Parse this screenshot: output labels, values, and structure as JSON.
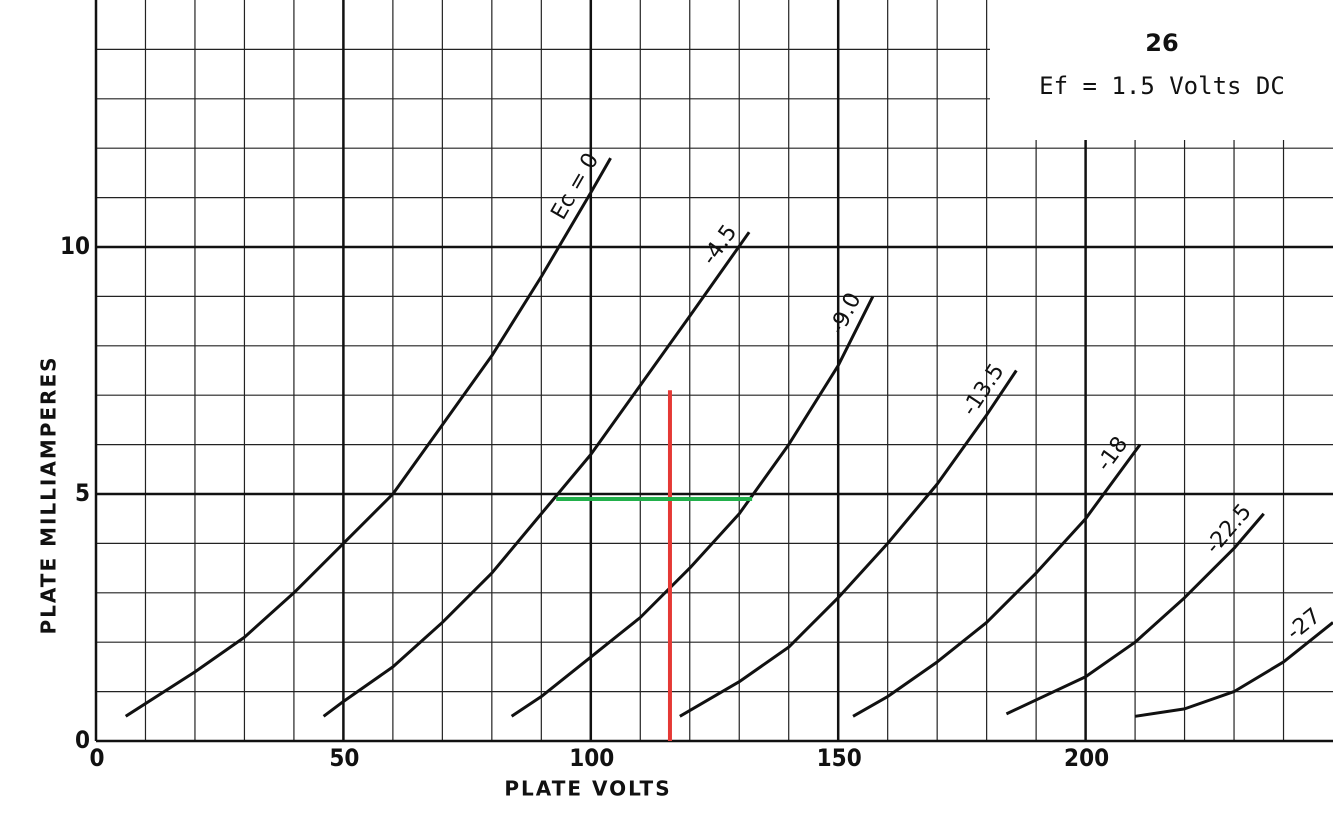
{
  "chart_data": {
    "type": "line",
    "title": "26",
    "subtitle": "Ef = 1.5 Volts DC",
    "x_label": "PLATE VOLTS",
    "y_label": "PLATE MILLIAMPERES",
    "xlim": [
      0,
      250
    ],
    "ylim": [
      0,
      15
    ],
    "xticks": [
      0,
      50,
      100,
      150,
      200
    ],
    "yticks": [
      0,
      5,
      10
    ],
    "x_minor_ticks": [
      10,
      20,
      30,
      40,
      60,
      70,
      80,
      90,
      110,
      120,
      130,
      140,
      160,
      170,
      180,
      190,
      210,
      220,
      230,
      240
    ],
    "y_minor_ticks": [
      1,
      2,
      3,
      4,
      6,
      7,
      8,
      9,
      11,
      12,
      13,
      14
    ],
    "grid": true,
    "series": [
      {
        "name": "Ec = 0",
        "color": "#111111",
        "x": [
          6,
          20,
          30,
          40,
          50,
          60,
          70,
          80,
          90,
          100,
          104
        ],
        "values": [
          0.5,
          1.4,
          2.1,
          3,
          4,
          5,
          6.4,
          7.8,
          9.4,
          11.1,
          11.8
        ]
      },
      {
        "name": "-4.5",
        "color": "#111111",
        "x": [
          46,
          50,
          60,
          70,
          80,
          90,
          100,
          110,
          120,
          132
        ],
        "values": [
          0.5,
          0.8,
          1.5,
          2.4,
          3.4,
          4.6,
          5.8,
          7.2,
          8.6,
          10.3
        ]
      },
      {
        "name": "-9.0",
        "color": "#111111",
        "x": [
          84,
          90,
          100,
          110,
          120,
          130,
          140,
          150,
          157
        ],
        "values": [
          0.5,
          0.9,
          1.7,
          2.5,
          3.5,
          4.6,
          6,
          7.6,
          9
        ]
      },
      {
        "name": "-13.5",
        "color": "#111111",
        "x": [
          118,
          130,
          140,
          150,
          160,
          170,
          180,
          186
        ],
        "values": [
          0.5,
          1.2,
          1.9,
          2.9,
          4,
          5.2,
          6.6,
          7.5
        ]
      },
      {
        "name": "-18",
        "color": "#111111",
        "x": [
          153,
          160,
          170,
          180,
          190,
          200,
          211
        ],
        "values": [
          0.5,
          0.9,
          1.6,
          2.4,
          3.4,
          4.5,
          6
        ]
      },
      {
        "name": "-22.5",
        "color": "#111111",
        "x": [
          184,
          200,
          210,
          220,
          230,
          236
        ],
        "values": [
          0.55,
          1.3,
          2,
          2.9,
          3.9,
          4.6
        ]
      },
      {
        "name": "-27",
        "color": "#111111",
        "x": [
          210,
          220,
          230,
          240,
          250
        ],
        "values": [
          0.5,
          0.65,
          1,
          1.6,
          2.4
        ]
      }
    ],
    "annotation_lines": [
      {
        "color": "#e53935",
        "x": [
          116,
          116
        ],
        "values": [
          0,
          7.1
        ]
      },
      {
        "color": "#22b04b",
        "x": [
          93,
          132.6
        ],
        "values": [
          4.9,
          4.9
        ]
      }
    ]
  }
}
